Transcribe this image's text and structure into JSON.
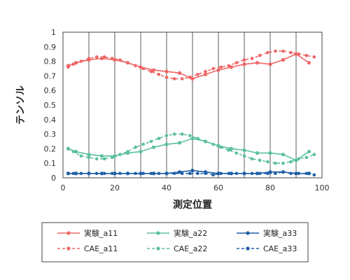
{
  "chart_data": {
    "type": "line",
    "xlabel": "測定位置",
    "ylabel": "テンソル",
    "xlim": [
      0,
      100
    ],
    "ylim": [
      0,
      1
    ],
    "xticks": [
      0,
      20,
      40,
      60,
      80,
      100
    ],
    "yticks": [
      0,
      0.1,
      0.2,
      0.3,
      0.4,
      0.5,
      0.6,
      0.7,
      0.8,
      0.9,
      1
    ],
    "vertical_gridlines_x": [
      10,
      20,
      30,
      40,
      50,
      60,
      70,
      80,
      90
    ],
    "grid": "vertical",
    "legend_position": "bottom",
    "series": [
      {
        "name": "実験_a11",
        "color": "#ee6666",
        "style": "solid",
        "x": [
          2,
          5,
          10,
          15,
          20,
          25,
          30,
          35,
          40,
          45,
          50,
          55,
          60,
          65,
          70,
          75,
          80,
          85,
          90,
          95
        ],
        "y": [
          0.77,
          0.79,
          0.81,
          0.82,
          0.81,
          0.79,
          0.76,
          0.74,
          0.73,
          0.72,
          0.68,
          0.71,
          0.74,
          0.76,
          0.78,
          0.79,
          0.78,
          0.81,
          0.85,
          0.79
        ]
      },
      {
        "name": "CAE_a11",
        "color": "#ee6666",
        "style": "dashed",
        "x": [
          2,
          4,
          7,
          10,
          13,
          16,
          19,
          22,
          25,
          28,
          31,
          34,
          37,
          40,
          43,
          46,
          49,
          52,
          55,
          58,
          61,
          64,
          67,
          70,
          73,
          76,
          79,
          82,
          85,
          88,
          91,
          94,
          97
        ],
        "y": [
          0.76,
          0.78,
          0.8,
          0.82,
          0.83,
          0.83,
          0.82,
          0.81,
          0.79,
          0.77,
          0.75,
          0.73,
          0.71,
          0.69,
          0.68,
          0.68,
          0.69,
          0.71,
          0.73,
          0.75,
          0.76,
          0.77,
          0.79,
          0.81,
          0.82,
          0.84,
          0.86,
          0.87,
          0.87,
          0.86,
          0.85,
          0.84,
          0.83
        ]
      },
      {
        "name": "実験_a22",
        "color": "#5bbfa0",
        "style": "solid",
        "x": [
          2,
          5,
          10,
          15,
          20,
          25,
          30,
          35,
          40,
          45,
          50,
          55,
          60,
          65,
          70,
          75,
          80,
          85,
          90,
          95
        ],
        "y": [
          0.2,
          0.18,
          0.16,
          0.15,
          0.15,
          0.17,
          0.18,
          0.21,
          0.23,
          0.24,
          0.27,
          0.25,
          0.22,
          0.2,
          0.19,
          0.17,
          0.17,
          0.16,
          0.12,
          0.18
        ]
      },
      {
        "name": "CAE_a22",
        "color": "#5bbfa0",
        "style": "dashed",
        "x": [
          2,
          4,
          7,
          10,
          13,
          16,
          19,
          22,
          25,
          28,
          31,
          34,
          37,
          40,
          43,
          46,
          49,
          52,
          55,
          58,
          61,
          64,
          67,
          70,
          73,
          76,
          79,
          82,
          85,
          88,
          91,
          94,
          97
        ],
        "y": [
          0.2,
          0.18,
          0.15,
          0.14,
          0.13,
          0.13,
          0.14,
          0.16,
          0.18,
          0.21,
          0.23,
          0.25,
          0.27,
          0.29,
          0.3,
          0.3,
          0.29,
          0.27,
          0.25,
          0.23,
          0.21,
          0.19,
          0.17,
          0.15,
          0.13,
          0.12,
          0.11,
          0.1,
          0.1,
          0.11,
          0.13,
          0.14,
          0.16
        ]
      },
      {
        "name": "実験_a33",
        "color": "#1f5fa8",
        "style": "solid",
        "x": [
          2,
          5,
          10,
          15,
          20,
          25,
          30,
          35,
          40,
          45,
          50,
          55,
          60,
          65,
          70,
          75,
          80,
          85,
          90,
          95
        ],
        "y": [
          0.03,
          0.03,
          0.03,
          0.03,
          0.03,
          0.03,
          0.03,
          0.03,
          0.03,
          0.04,
          0.05,
          0.04,
          0.03,
          0.03,
          0.03,
          0.03,
          0.04,
          0.04,
          0.03,
          0.03
        ]
      },
      {
        "name": "CAE_a33",
        "color": "#1f5fa8",
        "style": "dashed",
        "x": [
          2,
          4,
          7,
          10,
          13,
          16,
          19,
          22,
          25,
          28,
          31,
          34,
          37,
          40,
          43,
          46,
          49,
          52,
          55,
          58,
          61,
          64,
          67,
          70,
          73,
          76,
          79,
          82,
          85,
          88,
          91,
          94,
          97
        ],
        "y": [
          0.03,
          0.03,
          0.03,
          0.03,
          0.03,
          0.03,
          0.03,
          0.03,
          0.03,
          0.03,
          0.03,
          0.03,
          0.03,
          0.03,
          0.03,
          0.03,
          0.03,
          0.03,
          0.03,
          0.02,
          0.03,
          0.03,
          0.03,
          0.03,
          0.03,
          0.03,
          0.03,
          0.03,
          0.04,
          0.03,
          0.03,
          0.03,
          0.02
        ]
      }
    ]
  }
}
